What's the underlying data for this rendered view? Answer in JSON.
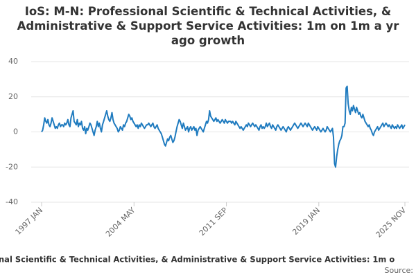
{
  "chart_data": {
    "type": "line",
    "title": "IoS: M-N: Professional Scientific & Technical Activities, & Administrative & Support Service Activities: 1m on 1m a yr ago growth",
    "footer_title": "nal Scientific & Technical Activities, & Administrative & Support Service Activities: 1m o",
    "source": "Source:",
    "categories": [
      "1997 JAN",
      null,
      null,
      null,
      null,
      null,
      null,
      null,
      null,
      null,
      null,
      null,
      null,
      null,
      null,
      null,
      null,
      null,
      null,
      null,
      null,
      null,
      null,
      null,
      null,
      null,
      null,
      null,
      null,
      null,
      null,
      null,
      null,
      null,
      null,
      null,
      null,
      null,
      null,
      null,
      null,
      null,
      null,
      null,
      null,
      null,
      null,
      null,
      null,
      null,
      null,
      null,
      null,
      null,
      null,
      null,
      null,
      null,
      null,
      null,
      null,
      null,
      null,
      null,
      null,
      null,
      null,
      null,
      null,
      null,
      null,
      null,
      null,
      null,
      null,
      null,
      null,
      null,
      null,
      null,
      null,
      null,
      null,
      null,
      null,
      null,
      null,
      null,
      "2004 MAY",
      null,
      null,
      null,
      null,
      null,
      null,
      null,
      null,
      null,
      null,
      null,
      null,
      null,
      null,
      null,
      null,
      null,
      null,
      null,
      null,
      null,
      null,
      null,
      null,
      null,
      null,
      null,
      null,
      null,
      null,
      null,
      null,
      null,
      null,
      null,
      null,
      null,
      null,
      null,
      null,
      null,
      null,
      null,
      null,
      null,
      null,
      null,
      null,
      null,
      null,
      null,
      null,
      null,
      null,
      null,
      null,
      null,
      null,
      null,
      null,
      null,
      null,
      null,
      null,
      null,
      null,
      null,
      null,
      null,
      null,
      null,
      null,
      null,
      null,
      null,
      null,
      null,
      null,
      null,
      null,
      null,
      null,
      null,
      null,
      null,
      null,
      null,
      "2011 SEP",
      null,
      null,
      null,
      null,
      null,
      null,
      null,
      null,
      null,
      null,
      null,
      null,
      null,
      null,
      null,
      null,
      null,
      null,
      null,
      null,
      null,
      null,
      null,
      null,
      null,
      null,
      null,
      null,
      null,
      null,
      null,
      null,
      null,
      null,
      null,
      null,
      null,
      null,
      null,
      null,
      null,
      null,
      null,
      null,
      null,
      null,
      null,
      null,
      null,
      null,
      null,
      null,
      null,
      null,
      null,
      null,
      null,
      null,
      null,
      null,
      null,
      null,
      null,
      null,
      null,
      null,
      null,
      null,
      null,
      null,
      null,
      null,
      null,
      null,
      null,
      null,
      null,
      null,
      null,
      null,
      null,
      null,
      null,
      null,
      null,
      null,
      null,
      "2019 JAN",
      null,
      null,
      null,
      null,
      null,
      null,
      null,
      null,
      null,
      null,
      null,
      null,
      null,
      null,
      null,
      null,
      null,
      null,
      null,
      null,
      null,
      null,
      null,
      null,
      null,
      null,
      null,
      null,
      null,
      null,
      null,
      null,
      null,
      null,
      null,
      null,
      null,
      null,
      null,
      null,
      null,
      null,
      null,
      null,
      null,
      null,
      null,
      null,
      null,
      null,
      null,
      null,
      null,
      null,
      null,
      null,
      null,
      null,
      null,
      null,
      null,
      null,
      null,
      null,
      null,
      null,
      null,
      null,
      null,
      null,
      null,
      null,
      null,
      null,
      null,
      null,
      null,
      null,
      null,
      null,
      null,
      "2025 NOV"
    ],
    "series": [
      {
        "name": "growth",
        "color": "#1f7bbf",
        "values": [
          0,
          1,
          4,
          8,
          6,
          5,
          7,
          4,
          3,
          5,
          8,
          6,
          4,
          2,
          3,
          2,
          4,
          5,
          3,
          4,
          4,
          3,
          5,
          4,
          5,
          7,
          4,
          3,
          8,
          10,
          12,
          6,
          5,
          4,
          7,
          3,
          5,
          4,
          6,
          2,
          1,
          3,
          -1,
          2,
          1,
          3,
          5,
          4,
          2,
          0,
          -2,
          1,
          3,
          6,
          3,
          5,
          2,
          0,
          4,
          6,
          8,
          10,
          12,
          9,
          7,
          6,
          8,
          11,
          7,
          5,
          4,
          3,
          2,
          0,
          1,
          3,
          2,
          1,
          4,
          3,
          5,
          6,
          8,
          10,
          9,
          7,
          8,
          6,
          5,
          4,
          3,
          4,
          2,
          4,
          3,
          5,
          4,
          3,
          2,
          3,
          4,
          4,
          5,
          4,
          3,
          4,
          5,
          3,
          2,
          3,
          4,
          2,
          1,
          0,
          -1,
          -3,
          -5,
          -7,
          -8,
          -6,
          -4,
          -5,
          -3,
          -2,
          -4,
          -6,
          -5,
          -3,
          0,
          3,
          5,
          7,
          6,
          4,
          2,
          5,
          3,
          1,
          2,
          3,
          0,
          2,
          3,
          1,
          2,
          3,
          1,
          2,
          -2,
          1,
          2,
          3,
          2,
          1,
          0,
          2,
          4,
          6,
          5,
          7,
          12,
          9,
          8,
          7,
          6,
          7,
          8,
          6,
          7,
          6,
          5,
          6,
          7,
          6,
          5,
          7,
          6,
          5,
          6,
          6,
          6,
          5,
          6,
          5,
          4,
          6,
          5,
          4,
          3,
          2,
          3,
          2,
          1,
          2,
          3,
          4,
          3,
          5,
          4,
          3,
          4,
          5,
          4,
          3,
          4,
          3,
          2,
          1,
          3,
          4,
          2,
          3,
          2,
          3,
          5,
          3,
          4,
          5,
          3,
          2,
          4,
          3,
          2,
          1,
          3,
          4,
          3,
          2,
          1,
          2,
          3,
          2,
          1,
          0,
          2,
          3,
          2,
          1,
          2,
          3,
          4,
          5,
          4,
          3,
          2,
          3,
          4,
          5,
          4,
          3,
          4,
          5,
          4,
          3,
          5,
          4,
          3,
          2,
          1,
          2,
          3,
          2,
          1,
          3,
          2,
          1,
          0,
          1,
          2,
          1,
          0,
          1,
          3,
          2,
          1,
          0,
          1,
          2,
          -3,
          -18,
          -20,
          -14,
          -10,
          -7,
          -5,
          -4,
          -2,
          3,
          3,
          5,
          25,
          26,
          16,
          12,
          10,
          14,
          12,
          15,
          13,
          11,
          14,
          12,
          10,
          11,
          9,
          8,
          10,
          8,
          6,
          5,
          4,
          3,
          4,
          2,
          1,
          -1,
          -2,
          0,
          1,
          2,
          3,
          1,
          2,
          3,
          4,
          5,
          3,
          4,
          5,
          4,
          3,
          4,
          3,
          2,
          4,
          3,
          2,
          3,
          2,
          4,
          3,
          2,
          3,
          4,
          2,
          3,
          4
        ]
      }
    ],
    "ylim": [
      -40,
      40
    ],
    "yticks": [
      -40,
      -20,
      0,
      20,
      40
    ],
    "grid": true
  }
}
